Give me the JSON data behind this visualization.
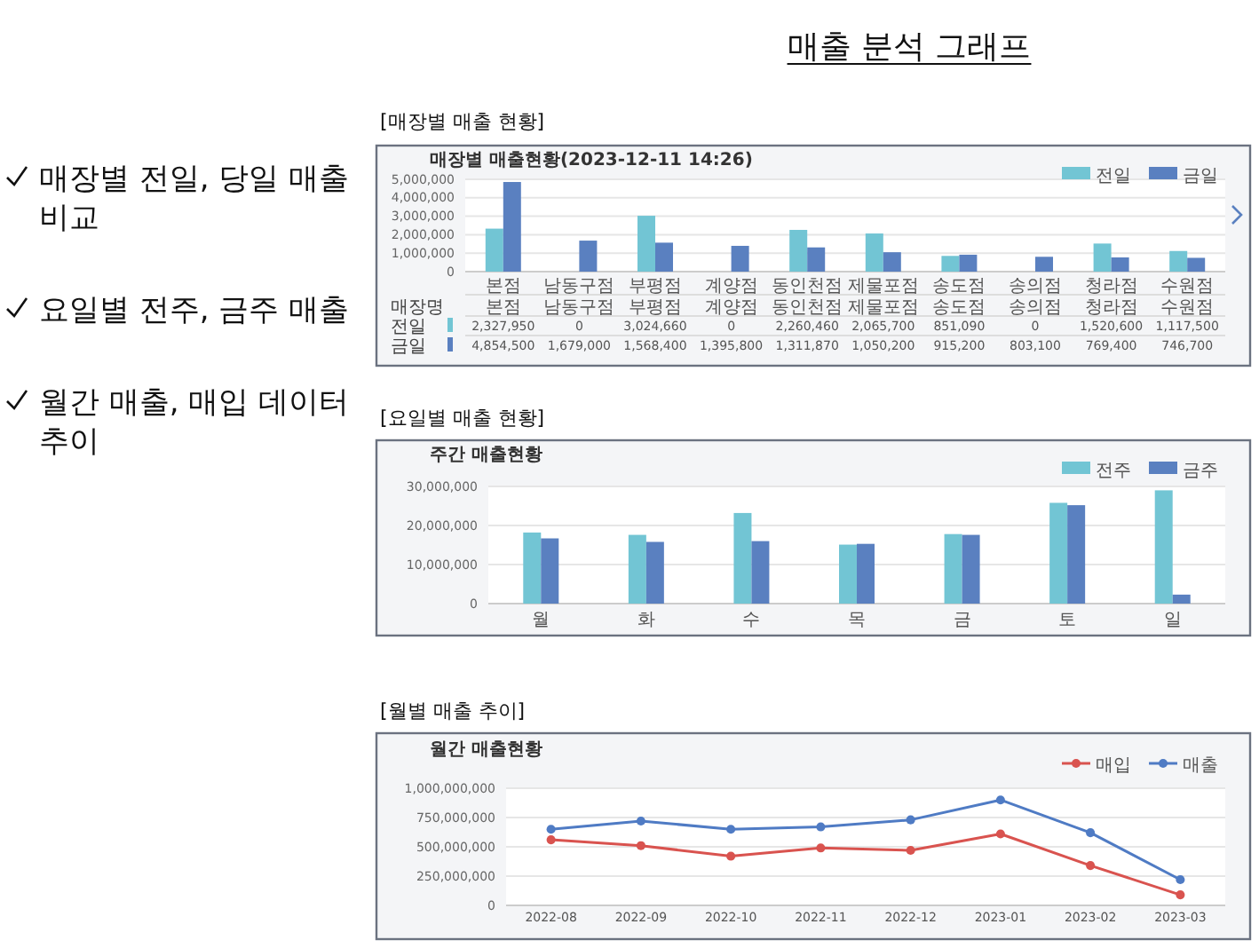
{
  "chart_data": [
    {
      "type": "other",
      "title": "매출 분석 그래프",
      "annotations": [
        "매장별 전일, 당일 매출 비교",
        "요일별 전주, 금주 매출",
        "월간 매출, 매입 데이터 추이"
      ]
    },
    {
      "type": "bar",
      "title": "[매장별 매출 현황]",
      "subtitle": "매장별 매출현황(2023-12-11 14:26)",
      "categories": [
        "본점",
        "남동구점",
        "부평점",
        "계양점",
        "동인천점",
        "제물포점",
        "송도점",
        "송의점",
        "청라점",
        "수원점"
      ],
      "series": [
        {
          "name": "전일",
          "color": "#72c5d4",
          "values": [
            2327950,
            0,
            3024660,
            0,
            2260460,
            2065700,
            851090,
            0,
            1520600,
            1117500
          ],
          "value_labels": [
            "2,327,950",
            "0",
            "3,024,660",
            "0",
            "2,260,460",
            "2,065,700",
            "851,090",
            "0",
            "1,520,600",
            "1,117,500"
          ]
        },
        {
          "name": "금일",
          "color": "#5a80c0",
          "values": [
            4854500,
            1679000,
            1568400,
            1395800,
            1311870,
            1050200,
            915200,
            803100,
            769400,
            746700
          ],
          "value_labels": [
            "4,854,500",
            "1,679,000",
            "1,568,400",
            "1,395,800",
            "1,311,870",
            "1,050,200",
            "915,200",
            "803,100",
            "769,400",
            "746,700"
          ]
        }
      ],
      "ylim": [
        0,
        5000000
      ],
      "yticks": [
        {
          "value": 0,
          "label": "0"
        },
        {
          "value": 1000000,
          "label": "1,000,000"
        },
        {
          "value": 2000000,
          "label": "2,000,000"
        },
        {
          "value": 3000000,
          "label": "3,000,000"
        },
        {
          "value": 4000000,
          "label": "4,000,000"
        },
        {
          "value": 5000000,
          "label": "5,000,000"
        }
      ],
      "grid": "y",
      "legend": "top right",
      "annotations": [
        "매장명"
      ]
    },
    {
      "type": "bar",
      "title": "[요일별 매출 현황]",
      "subtitle": "주간 매출현황",
      "categories": [
        "월",
        "화",
        "수",
        "목",
        "금",
        "토",
        "일"
      ],
      "series": [
        {
          "name": "전주",
          "color": "#72c5d4",
          "values": [
            18200000,
            17600000,
            23200000,
            15100000,
            17800000,
            25800000,
            29000000
          ]
        },
        {
          "name": "금주",
          "color": "#5a80c0",
          "values": [
            16700000,
            15800000,
            16000000,
            15300000,
            17600000,
            25200000,
            2300000
          ]
        }
      ],
      "ylim": [
        0,
        30000000
      ],
      "yticks": [
        {
          "value": 0,
          "label": "0"
        },
        {
          "value": 10000000,
          "label": "10,000,000"
        },
        {
          "value": 20000000,
          "label": "20,000,000"
        },
        {
          "value": 30000000,
          "label": "30,000,000"
        }
      ],
      "grid": "y",
      "legend": "top right"
    },
    {
      "type": "line",
      "title": "[월별 매출 추이]",
      "subtitle": "월간 매출현황",
      "categories": [
        "2022-08",
        "2022-09",
        "2022-10",
        "2022-11",
        "2022-12",
        "2023-01",
        "2023-02",
        "2023-03"
      ],
      "series": [
        {
          "name": "매입",
          "color": "#d9534f",
          "values": [
            560000000,
            510000000,
            420000000,
            490000000,
            470000000,
            610000000,
            340000000,
            90000000
          ]
        },
        {
          "name": "매출",
          "color": "#4f7bc4",
          "values": [
            650000000,
            720000000,
            650000000,
            670000000,
            730000000,
            900000000,
            620000000,
            220000000
          ]
        }
      ],
      "ylim": [
        0,
        1000000000
      ],
      "yticks": [
        {
          "value": 0,
          "label": "0"
        },
        {
          "value": 250000000,
          "label": "250,000,000"
        },
        {
          "value": 500000000,
          "label": "500,000,000"
        },
        {
          "value": 750000000,
          "label": "750,000,000"
        },
        {
          "value": 1000000000,
          "label": "1,000,000,000"
        }
      ],
      "grid": "y",
      "legend": "top right",
      "marker": "circle"
    }
  ]
}
